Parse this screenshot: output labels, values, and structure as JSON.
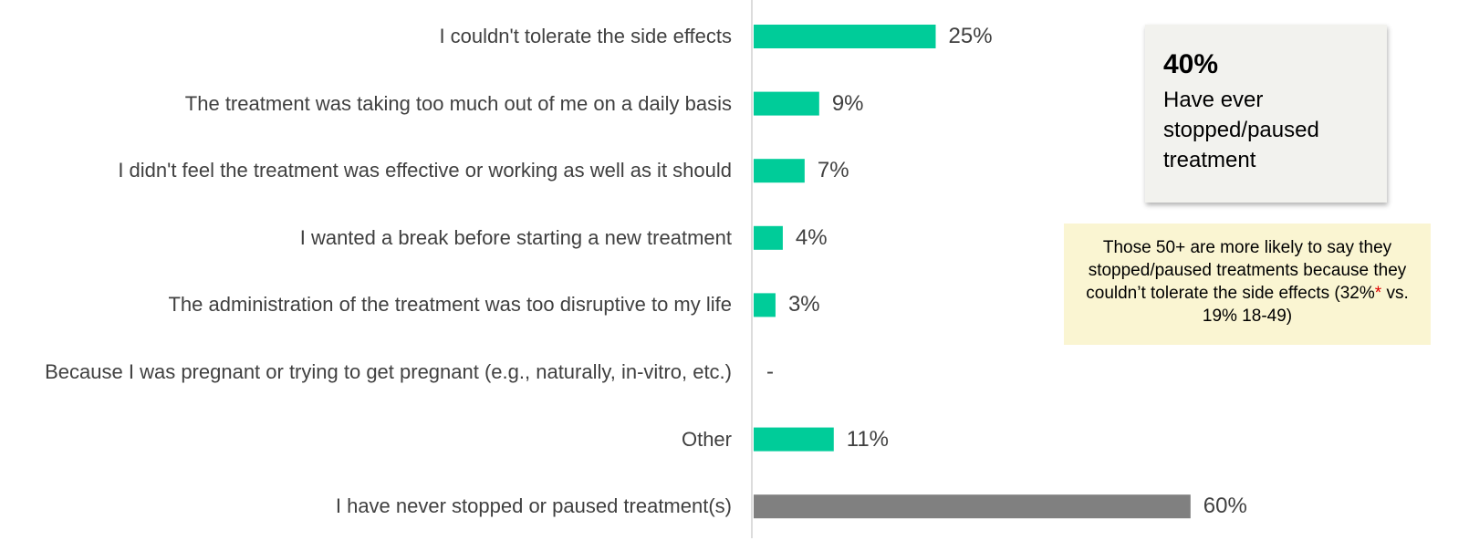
{
  "chart_data": {
    "type": "bar",
    "orientation": "horizontal",
    "categories": [
      "I couldn't tolerate the side effects",
      "The treatment was taking too much out of me on a daily basis",
      "I didn't feel the treatment was effective or working as well as it should",
      "I wanted a break before starting a new treatment",
      "The administration of the treatment was too disruptive to my life",
      "Because I was pregnant or trying to get pregnant (e.g., naturally, in-vitro, etc.)",
      "Other",
      "I have never stopped or paused treatment(s)"
    ],
    "values": [
      25,
      9,
      7,
      4,
      3,
      null,
      11,
      60
    ],
    "value_labels": [
      "25%",
      "9%",
      "7%",
      "4%",
      "3%",
      "-",
      "11%",
      "60%"
    ],
    "colors": [
      "#00cc99",
      "#00cc99",
      "#00cc99",
      "#00cc99",
      "#00cc99",
      "#00cc99",
      "#00cc99",
      "#808080"
    ]
  },
  "callout": {
    "value": "40%",
    "text": "Have ever stopped/paused treatment"
  },
  "note": {
    "text_before": "Those 50+ are more likely to say they stopped/paused treatments because they couldn’t tolerate the side effects (32%",
    "marker": "*",
    "text_after": " vs. 19% 18-49)"
  }
}
